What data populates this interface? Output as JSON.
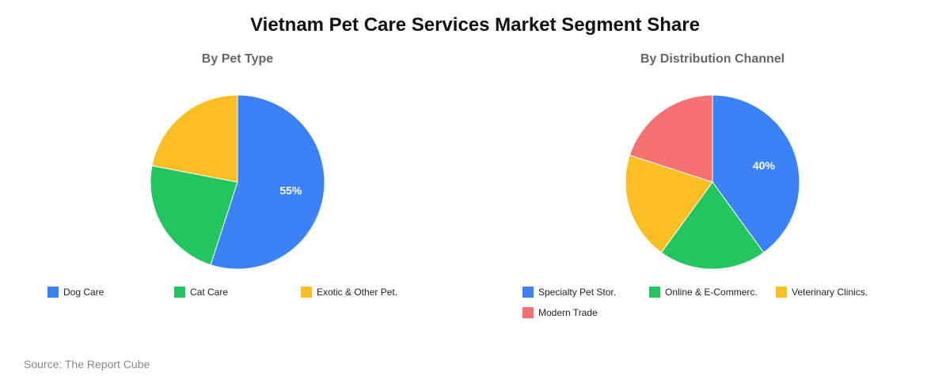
{
  "title": "Vietnam Pet Care Services Market Segment Share",
  "source": "Source: The Report Cube",
  "chart_data": [
    {
      "type": "pie",
      "title": "By Pet Type",
      "categories": [
        "Dog Care",
        "Cat Care",
        "Exotic & Other Pet."
      ],
      "values": [
        55,
        23,
        22
      ],
      "colors": [
        "#3b82f6",
        "#22c55e",
        "#fbbf24"
      ],
      "data_labels": [
        "55%",
        "",
        ""
      ],
      "legend": "bottom",
      "start_angle": "12 o'clock, clockwise"
    },
    {
      "type": "pie",
      "title": "By Distribution Channel",
      "categories": [
        "Specialty Pet Stor.",
        "Online & E-Commerc.",
        "Veterinary Clinics.",
        "Modern Trade"
      ],
      "values": [
        40,
        20,
        20,
        20
      ],
      "colors": [
        "#3b82f6",
        "#22c55e",
        "#fbbf24",
        "#f87171"
      ],
      "data_labels": [
        "40%",
        "",
        "",
        ""
      ],
      "legend": "bottom",
      "start_angle": "12 o'clock, clockwise"
    }
  ]
}
